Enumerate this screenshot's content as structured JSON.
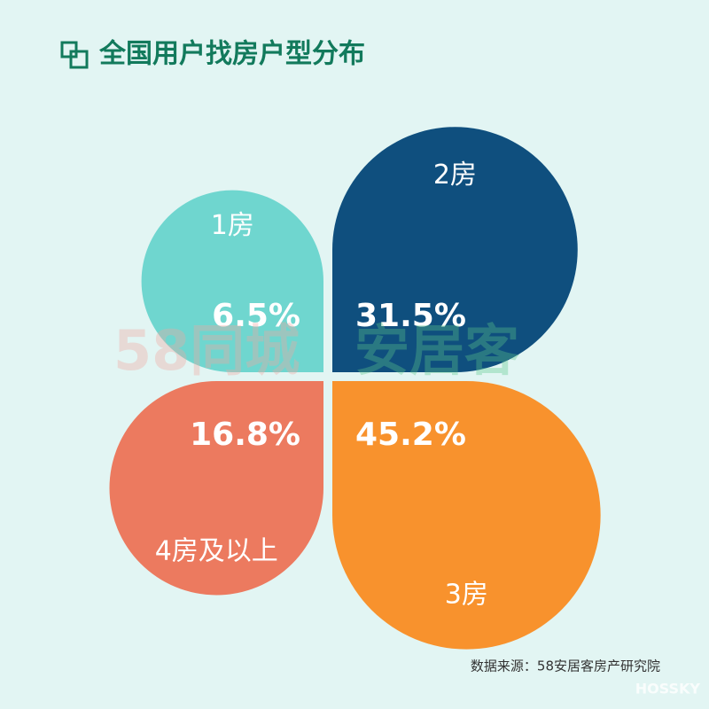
{
  "chart_data": {
    "type": "petal",
    "title": "全国用户找房户型分布",
    "categories": [
      "1房",
      "2房",
      "3房",
      "4房及以上"
    ],
    "values": [
      6.5,
      31.5,
      45.2,
      16.8
    ],
    "value_labels": [
      "6.5%",
      "31.5%",
      "45.2%",
      "16.8%"
    ],
    "colors": [
      "#6fd6cf",
      "#0f4f7e",
      "#f8922d",
      "#ec7a5f"
    ],
    "source": "数据来源：58安居客房产研究院",
    "watermark": [
      "58同城",
      "安居客",
      "HOSSKY"
    ]
  }
}
